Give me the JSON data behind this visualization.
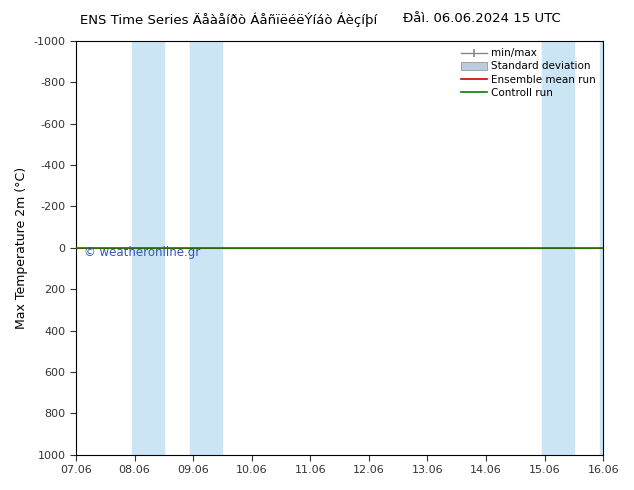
{
  "title_left": "ENS Time Series Äåàåíðò ÁåñïëéëÝíáò Áèçíþí",
  "title_right": "Ðåì. 06.06.2024 15 UTC",
  "ylabel": "Max Temperature 2m (°C)",
  "ylim_bottom": 1000,
  "ylim_top": -1000,
  "ytick_values": [
    -1000,
    -800,
    -600,
    -400,
    -200,
    0,
    200,
    400,
    600,
    800,
    1000
  ],
  "xtick_labels": [
    "07.06",
    "08.06",
    "09.06",
    "10.06",
    "11.06",
    "12.06",
    "13.06",
    "14.06",
    "15.06",
    "16.06"
  ],
  "xtick_positions": [
    0,
    1,
    2,
    3,
    4,
    5,
    6,
    7,
    8,
    9
  ],
  "xlim": [
    0,
    9
  ],
  "shade_bands": [
    [
      0.95,
      1.5
    ],
    [
      1.95,
      2.5
    ],
    [
      7.95,
      8.5
    ],
    [
      8.95,
      9.5
    ]
  ],
  "shade_color": "#cce5f5",
  "green_line_color": "#008000",
  "red_line_color": "#ff0000",
  "watermark_text": "© weatheronline.gr",
  "watermark_color": "#3355bb",
  "legend_labels": [
    "min/max",
    "Standard deviation",
    "Ensemble mean run",
    "Controll run"
  ],
  "legend_minmax_color": "#888888",
  "legend_std_color": "#bbccdd",
  "legend_ens_color": "#cc0000",
  "legend_ctrl_color": "#008000",
  "bg_color": "#ffffff",
  "title_fontsize": 9.5,
  "ylabel_fontsize": 9,
  "tick_fontsize": 8,
  "legend_fontsize": 7.5,
  "watermark_fontsize": 8.5
}
